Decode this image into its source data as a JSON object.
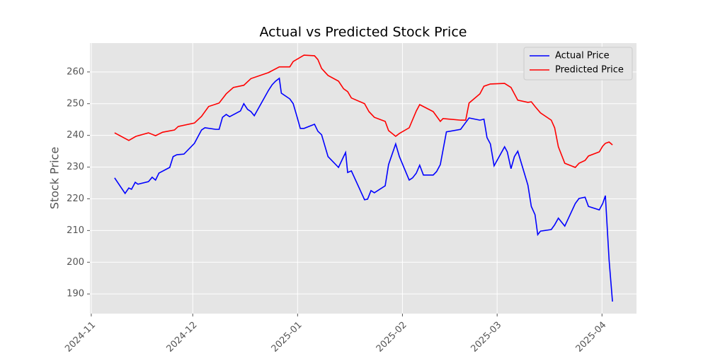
{
  "chart_data": {
    "type": "line",
    "title": "Actual vs Predicted Stock Price",
    "ylabel": "Stock Price",
    "xlim": [
      -0.4,
      161.2
    ],
    "xticks": [
      {
        "value": 0,
        "label": "2024-11"
      },
      {
        "value": 30,
        "label": "2024-12"
      },
      {
        "value": 61,
        "label": "2025-01"
      },
      {
        "value": 92,
        "label": "2025-02"
      },
      {
        "value": 120,
        "label": "2025-03"
      },
      {
        "value": 151,
        "label": "2025-04"
      }
    ],
    "ylim": [
      183.8,
      269.1
    ],
    "yticks": [
      190,
      200,
      210,
      220,
      230,
      240,
      250,
      260
    ],
    "grid": true,
    "legend": "upper right",
    "series": [
      {
        "name": "Actual Price",
        "color": "#0000ff",
        "x": [
          6.9,
          10,
          11.1,
          11.9,
          13,
          13.8,
          16.9,
          18,
          19,
          20,
          23.2,
          24.2,
          25.3,
          27.4,
          30.5,
          31.5,
          32.6,
          33.6,
          36.8,
          37.8,
          38.8,
          39.9,
          40.9,
          44.1,
          45.1,
          46.2,
          47.2,
          48.2,
          50.3,
          52.4,
          53.5,
          54.5,
          55.6,
          56.2,
          58.7,
          59.7,
          60.8,
          61.8,
          62.9,
          66,
          67,
          68.1,
          70,
          73.1,
          74.6,
          75.2,
          75.8,
          76.9,
          80.8,
          81.7,
          82.7,
          83.7,
          86.9,
          87.9,
          90,
          91.1,
          94,
          95,
          96.1,
          97.1,
          98.2,
          101.1,
          102.1,
          103.2,
          105,
          109.2,
          111.7,
          114.9,
          116.1,
          117,
          118,
          119.1,
          122.2,
          123,
          124.1,
          125.1,
          126.1,
          129.1,
          130.1,
          131.2,
          132,
          132.8,
          136,
          137,
          138.1,
          140,
          143.1,
          144.2,
          146,
          147,
          150.2,
          151.2,
          152,
          153.1,
          154.1
        ],
        "values": [
          226.6,
          221.7,
          223.4,
          223.0,
          225.2,
          224.6,
          225.4,
          226.8,
          225.9,
          228.1,
          229.9,
          233.3,
          233.9,
          234.1,
          237.5,
          239.5,
          241.7,
          242.4,
          241.9,
          241.9,
          245.7,
          246.6,
          245.9,
          247.7,
          250.0,
          248.2,
          247.5,
          246.2,
          250.2,
          254.2,
          256.0,
          257.1,
          258.0,
          253.3,
          251.5,
          250.0,
          246.0,
          242.2,
          242.2,
          243.5,
          241.3,
          240.2,
          233.3,
          229.9,
          233.3,
          234.6,
          228.3,
          228.8,
          219.7,
          219.9,
          222.6,
          221.9,
          224.1,
          230.8,
          237.3,
          233.3,
          225.9,
          226.6,
          228.1,
          230.6,
          227.5,
          227.5,
          228.6,
          230.8,
          241.1,
          241.9,
          245.5,
          244.8,
          245.1,
          239.3,
          237.3,
          230.4,
          236.4,
          234.8,
          229.5,
          233.3,
          235.0,
          224.3,
          217.6,
          215.0,
          208.7,
          209.8,
          210.3,
          211.8,
          213.9,
          211.4,
          218.5,
          220.1,
          220.5,
          217.6,
          216.5,
          218.5,
          221.0,
          200.7,
          187.6
        ]
      },
      {
        "name": "Predicted Price",
        "color": "#ff0000",
        "x": [
          6.9,
          11.1,
          13.2,
          16.9,
          19,
          21.1,
          24.6,
          25.7,
          30.5,
          32.6,
          34.7,
          37.8,
          39.9,
          42,
          45.1,
          47.2,
          52.4,
          55.6,
          58.7,
          59.7,
          62.9,
          66,
          67,
          68.1,
          70,
          73.1,
          74.6,
          75.8,
          76.9,
          80.8,
          82.1,
          83.7,
          86.9,
          87.9,
          90,
          91.1,
          94,
          96.1,
          97.1,
          101.1,
          103.2,
          104,
          109.2,
          110.7,
          111.7,
          114.9,
          116.1,
          118,
          122.2,
          124.1,
          126.1,
          129.1,
          130.1,
          131.2,
          132.8,
          136,
          137,
          138.1,
          140,
          143.1,
          144.2,
          146,
          147,
          150.2,
          151.2,
          152,
          153.1,
          154.1
        ],
        "values": [
          240.8,
          238.4,
          239.7,
          240.8,
          239.9,
          241.0,
          241.7,
          242.8,
          243.9,
          246.0,
          249.1,
          250.2,
          253.1,
          255.1,
          255.8,
          257.9,
          259.8,
          261.6,
          261.6,
          263.3,
          265.3,
          265.1,
          263.9,
          261.1,
          258.9,
          257.1,
          254.7,
          253.8,
          251.8,
          250.0,
          247.5,
          245.7,
          244.4,
          241.5,
          239.7,
          240.6,
          242.4,
          247.7,
          249.7,
          247.5,
          244.4,
          245.3,
          244.8,
          244.8,
          250.2,
          253.1,
          255.5,
          256.2,
          256.4,
          255.1,
          251.1,
          250.4,
          250.6,
          249.1,
          247.1,
          244.8,
          242.4,
          236.4,
          231.2,
          229.9,
          231.2,
          232.1,
          233.5,
          234.8,
          236.6,
          237.5,
          237.9,
          237.0
        ]
      }
    ]
  }
}
